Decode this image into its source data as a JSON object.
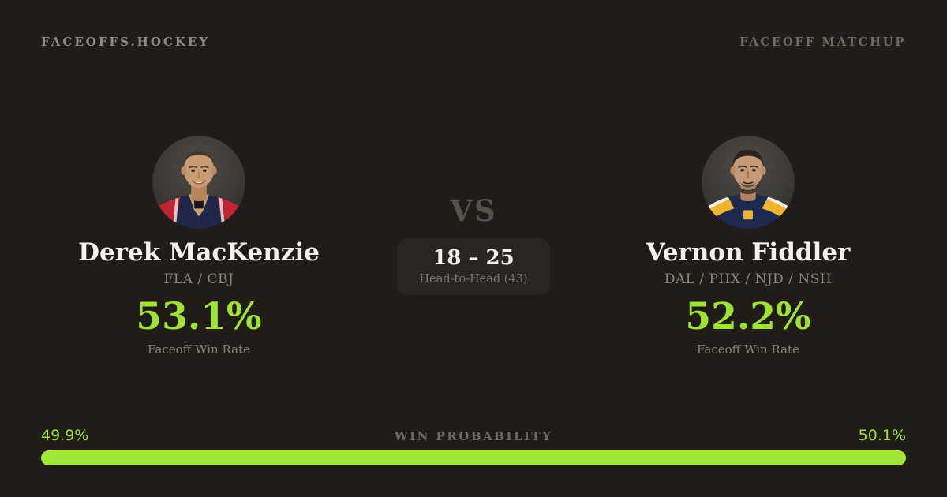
{
  "header": {
    "logo": "FACEOFFS.HOCKEY",
    "page_label": "FACEOFF MATCHUP"
  },
  "matchup": {
    "vs_label": "VS",
    "head_to_head": {
      "score": "18 – 25",
      "label": "Head-to-Head (43)"
    }
  },
  "players": {
    "left": {
      "name": "Derek MacKenzie",
      "teams": "FLA / CBJ",
      "win_rate": "53.1%",
      "win_rate_label": "Faceoff Win Rate",
      "avatar": "derek-mackenzie-headshot"
    },
    "right": {
      "name": "Vernon Fiddler",
      "teams": "DAL / PHX / NJD / NSH",
      "win_rate": "52.2%",
      "win_rate_label": "Faceoff Win Rate",
      "avatar": "vernon-fiddler-headshot"
    }
  },
  "win_probability": {
    "title": "WIN PROBABILITY",
    "left_value": "49.9%",
    "right_value": "50.1%",
    "left_pct": 49.9,
    "right_pct": 50.1
  },
  "colors": {
    "background": "#211c18",
    "accent_green": "#9ee335",
    "bar_green": "#a0e636",
    "panel": "#2a2522",
    "text_light": "#f4f1ec",
    "text_gray": "#8b857e",
    "text_dim": "#6e6963"
  }
}
